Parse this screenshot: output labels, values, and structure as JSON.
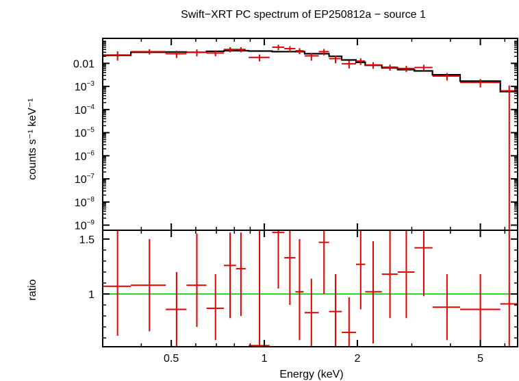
{
  "chart_data": [
    {
      "type": "scatter",
      "panel": "spectrum",
      "title": "Swift−XRT PC spectrum of EP250812a − source 1",
      "xlabel": "",
      "ylabel": "counts s⁻¹ keV⁻¹",
      "xscale": "log",
      "yscale": "log",
      "xlim": [
        0.3,
        6.6
      ],
      "ylim": [
        6e-10,
        0.12
      ],
      "yticks": [
        {
          "base": "0.01",
          "exp": ""
        },
        {
          "base": "10",
          "exp": "−3"
        },
        {
          "base": "10",
          "exp": "−4"
        },
        {
          "base": "10",
          "exp": "−5"
        },
        {
          "base": "10",
          "exp": "−6"
        },
        {
          "base": "10",
          "exp": "−7"
        },
        {
          "base": "10",
          "exp": "−8"
        },
        {
          "base": "10",
          "exp": "−9"
        }
      ],
      "ytick_values": [
        0.01,
        0.001,
        0.0001,
        1e-05,
        1e-06,
        1e-07,
        1e-08,
        1e-09
      ],
      "series": [
        {
          "kind": "data",
          "color": "#e00000",
          "points": [
            {
              "x": 0.335,
              "xlo": 0.3,
              "xhi": 0.37,
              "y": 0.023,
              "ylo": 0.013,
              "yhi": 0.033
            },
            {
              "x": 0.425,
              "xlo": 0.37,
              "xhi": 0.48,
              "y": 0.032,
              "ylo": 0.024,
              "yhi": 0.041
            },
            {
              "x": 0.52,
              "xlo": 0.48,
              "xhi": 0.56,
              "y": 0.026,
              "ylo": 0.017,
              "yhi": 0.035
            },
            {
              "x": 0.605,
              "xlo": 0.56,
              "xhi": 0.65,
              "y": 0.03,
              "ylo": 0.02,
              "yhi": 0.04
            },
            {
              "x": 0.695,
              "xlo": 0.65,
              "xhi": 0.74,
              "y": 0.028,
              "ylo": 0.02,
              "yhi": 0.036
            },
            {
              "x": 0.775,
              "xlo": 0.74,
              "xhi": 0.81,
              "y": 0.04,
              "ylo": 0.03,
              "yhi": 0.05
            },
            {
              "x": 0.84,
              "xlo": 0.81,
              "xhi": 0.87,
              "y": 0.04,
              "ylo": 0.03,
              "yhi": 0.05
            },
            {
              "x": 0.965,
              "xlo": 0.89,
              "xhi": 1.04,
              "y": 0.018,
              "ylo": 0.012,
              "yhi": 0.024
            },
            {
              "x": 1.11,
              "xlo": 1.06,
              "xhi": 1.16,
              "y": 0.05,
              "ylo": 0.037,
              "yhi": 0.064
            },
            {
              "x": 1.21,
              "xlo": 1.16,
              "xhi": 1.26,
              "y": 0.043,
              "ylo": 0.03,
              "yhi": 0.055
            },
            {
              "x": 1.3,
              "xlo": 1.26,
              "xhi": 1.34,
              "y": 0.035,
              "ylo": 0.025,
              "yhi": 0.045
            },
            {
              "x": 1.42,
              "xlo": 1.35,
              "xhi": 1.5,
              "y": 0.021,
              "ylo": 0.013,
              "yhi": 0.028
            },
            {
              "x": 1.56,
              "xlo": 1.5,
              "xhi": 1.62,
              "y": 0.032,
              "ylo": 0.022,
              "yhi": 0.042
            },
            {
              "x": 1.7,
              "xlo": 1.62,
              "xhi": 1.78,
              "y": 0.016,
              "ylo": 0.01,
              "yhi": 0.022
            },
            {
              "x": 1.88,
              "xlo": 1.78,
              "xhi": 1.98,
              "y": 0.0095,
              "ylo": 0.006,
              "yhi": 0.013
            },
            {
              "x": 2.05,
              "xlo": 1.98,
              "xhi": 2.12,
              "y": 0.0125,
              "ylo": 0.0085,
              "yhi": 0.0165
            },
            {
              "x": 2.25,
              "xlo": 2.12,
              "xhi": 2.4,
              "y": 0.0085,
              "ylo": 0.0058,
              "yhi": 0.0112
            },
            {
              "x": 2.55,
              "xlo": 2.4,
              "xhi": 2.7,
              "y": 0.0068,
              "ylo": 0.0048,
              "yhi": 0.0088
            },
            {
              "x": 2.88,
              "xlo": 2.7,
              "xhi": 3.06,
              "y": 0.006,
              "ylo": 0.0042,
              "yhi": 0.0078
            },
            {
              "x": 3.28,
              "xlo": 3.06,
              "xhi": 3.5,
              "y": 0.0066,
              "ylo": 0.0046,
              "yhi": 0.0086
            },
            {
              "x": 3.9,
              "xlo": 3.5,
              "xhi": 4.3,
              "y": 0.0028,
              "ylo": 0.0018,
              "yhi": 0.0038
            },
            {
              "x": 5.0,
              "xlo": 4.3,
              "xhi": 5.8,
              "y": 0.0015,
              "ylo": 0.0009,
              "yhi": 0.0021
            },
            {
              "x": 6.2,
              "xlo": 5.8,
              "xhi": 6.6,
              "y": 0.00065,
              "ylo": 6e-10,
              "yhi": 0.0011
            }
          ]
        },
        {
          "kind": "model",
          "color": "#000000",
          "steps": [
            {
              "x0": 0.3,
              "x1": 0.37,
              "y": 0.022
            },
            {
              "x0": 0.37,
              "x1": 0.48,
              "y": 0.03
            },
            {
              "x0": 0.48,
              "x1": 0.56,
              "y": 0.031
            },
            {
              "x0": 0.56,
              "x1": 0.65,
              "y": 0.03
            },
            {
              "x0": 0.65,
              "x1": 0.74,
              "y": 0.033
            },
            {
              "x0": 0.74,
              "x1": 0.89,
              "y": 0.035
            },
            {
              "x0": 0.89,
              "x1": 1.06,
              "y": 0.034
            },
            {
              "x0": 1.06,
              "x1": 1.35,
              "y": 0.032
            },
            {
              "x0": 1.35,
              "x1": 1.62,
              "y": 0.026
            },
            {
              "x0": 1.62,
              "x1": 1.78,
              "y": 0.02
            },
            {
              "x0": 1.78,
              "x1": 1.98,
              "y": 0.014
            },
            {
              "x0": 1.98,
              "x1": 2.12,
              "y": 0.011
            },
            {
              "x0": 2.12,
              "x1": 2.4,
              "y": 0.0082
            },
            {
              "x0": 2.4,
              "x1": 2.7,
              "y": 0.0063
            },
            {
              "x0": 2.7,
              "x1": 3.06,
              "y": 0.0053
            },
            {
              "x0": 3.06,
              "x1": 3.5,
              "y": 0.0047
            },
            {
              "x0": 3.5,
              "x1": 4.3,
              "y": 0.0032
            },
            {
              "x0": 4.3,
              "x1": 5.8,
              "y": 0.0017
            },
            {
              "x0": 5.8,
              "x1": 6.6,
              "y": 0.0006
            }
          ]
        }
      ]
    },
    {
      "type": "scatter",
      "panel": "ratio",
      "title": "",
      "xlabel": "Energy (keV)",
      "ylabel": "ratio",
      "xscale": "log",
      "yscale": "linear",
      "xlim": [
        0.3,
        6.6
      ],
      "ylim": [
        0.52,
        1.58
      ],
      "xticks": [
        0.5,
        1,
        2,
        5
      ],
      "xtick_labels": [
        "0.5",
        "1",
        "2",
        "5"
      ],
      "yticks": [
        1,
        1.5
      ],
      "ytick_labels": [
        "1",
        "1.5"
      ],
      "reference_line": {
        "y": 1,
        "color": "#22dd22"
      },
      "series": [
        {
          "kind": "ratio",
          "color": "#e00000",
          "points": [
            {
              "x": 0.335,
              "xlo": 0.3,
              "xhi": 0.37,
              "y": 1.07,
              "ylo": 0.62,
              "yhi": 1.58
            },
            {
              "x": 0.425,
              "xlo": 0.37,
              "xhi": 0.48,
              "y": 1.08,
              "ylo": 0.66,
              "yhi": 1.5
            },
            {
              "x": 0.52,
              "xlo": 0.48,
              "xhi": 0.56,
              "y": 0.86,
              "ylo": 0.52,
              "yhi": 1.2
            },
            {
              "x": 0.605,
              "xlo": 0.56,
              "xhi": 0.65,
              "y": 1.08,
              "ylo": 0.7,
              "yhi": 1.55
            },
            {
              "x": 0.695,
              "xlo": 0.65,
              "xhi": 0.74,
              "y": 0.87,
              "ylo": 0.58,
              "yhi": 1.18
            },
            {
              "x": 0.775,
              "xlo": 0.74,
              "xhi": 0.81,
              "y": 1.26,
              "ylo": 0.78,
              "yhi": 1.56
            },
            {
              "x": 0.84,
              "xlo": 0.81,
              "xhi": 0.87,
              "y": 1.23,
              "ylo": 0.8,
              "yhi": 1.56
            },
            {
              "x": 0.965,
              "xlo": 0.89,
              "xhi": 1.04,
              "y": 0.53,
              "ylo": 0.52,
              "yhi": 1.58
            },
            {
              "x": 1.11,
              "xlo": 1.06,
              "xhi": 1.16,
              "y": 1.56,
              "ylo": 1.05,
              "yhi": 1.58
            },
            {
              "x": 1.21,
              "xlo": 1.16,
              "xhi": 1.26,
              "y": 1.33,
              "ylo": 0.9,
              "yhi": 1.58
            },
            {
              "x": 1.3,
              "xlo": 1.26,
              "xhi": 1.34,
              "y": 1.02,
              "ylo": 0.58,
              "yhi": 1.5
            },
            {
              "x": 1.42,
              "xlo": 1.35,
              "xhi": 1.5,
              "y": 0.83,
              "ylo": 0.52,
              "yhi": 1.14
            },
            {
              "x": 1.56,
              "xlo": 1.5,
              "xhi": 1.62,
              "y": 1.47,
              "ylo": 1.0,
              "yhi": 1.58
            },
            {
              "x": 1.7,
              "xlo": 1.62,
              "xhi": 1.78,
              "y": 0.84,
              "ylo": 0.52,
              "yhi": 1.18
            },
            {
              "x": 1.88,
              "xlo": 1.78,
              "xhi": 1.98,
              "y": 0.65,
              "ylo": 0.52,
              "yhi": 0.97
            },
            {
              "x": 2.05,
              "xlo": 1.98,
              "xhi": 2.12,
              "y": 1.27,
              "ylo": 0.86,
              "yhi": 1.58
            },
            {
              "x": 2.25,
              "xlo": 2.12,
              "xhi": 2.4,
              "y": 1.02,
              "ylo": 0.55,
              "yhi": 1.48
            },
            {
              "x": 2.55,
              "xlo": 2.4,
              "xhi": 2.7,
              "y": 1.18,
              "ylo": 0.78,
              "yhi": 1.58
            },
            {
              "x": 2.88,
              "xlo": 2.7,
              "xhi": 3.06,
              "y": 1.2,
              "ylo": 0.78,
              "yhi": 1.58
            },
            {
              "x": 3.28,
              "xlo": 3.06,
              "xhi": 3.5,
              "y": 1.42,
              "ylo": 0.98,
              "yhi": 1.58
            },
            {
              "x": 3.9,
              "xlo": 3.5,
              "xhi": 4.3,
              "y": 0.88,
              "ylo": 0.58,
              "yhi": 1.18
            },
            {
              "x": 5.0,
              "xlo": 4.3,
              "xhi": 5.8,
              "y": 0.86,
              "ylo": 0.52,
              "yhi": 1.18
            },
            {
              "x": 6.2,
              "xlo": 5.8,
              "xhi": 6.6,
              "y": 0.91,
              "ylo": 0.52,
              "yhi": 1.58
            }
          ]
        }
      ]
    }
  ]
}
